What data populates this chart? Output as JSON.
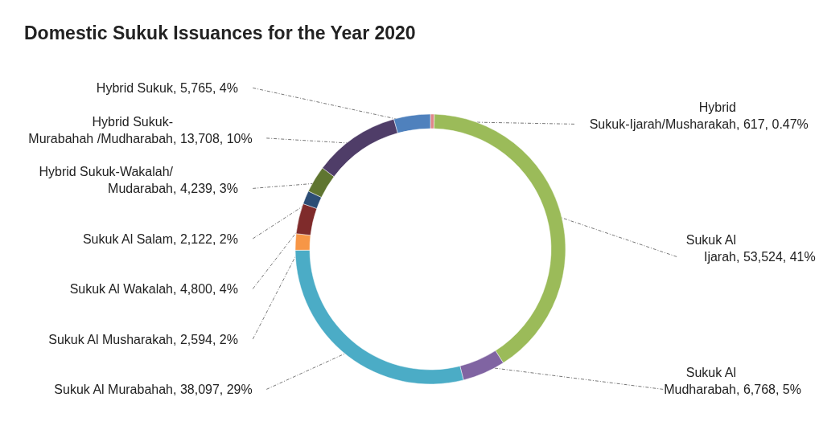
{
  "chart_data": {
    "type": "donut",
    "title": "Domestic Sukuk Issuances for the Year 2020",
    "categories": [
      "Hybrid Sukuk-Ijarah/Musharakah",
      "Sukuk Al Ijarah",
      "Sukuk Al Mudharabah",
      "Sukuk Al Murabahah",
      "Sukuk Al Musharakah",
      "Sukuk Al Wakalah",
      "Sukuk Al Salam",
      "Hybrid Sukuk-Wakalah/ Mudarabah",
      "Hybrid Sukuk- Murabahah /Mudharabah",
      "Hybrid Sukuk"
    ],
    "values": [
      617,
      53524,
      6768,
      38097,
      2594,
      4800,
      2122,
      4239,
      13708,
      5765
    ],
    "value_labels": [
      ", 617, 0.47%",
      ", 53,524, 41%",
      ", 6,768, 5%",
      ", 38,097, 29%",
      ", 2,594, 2%",
      ", 4,800, 4%",
      ", 2,122, 2%",
      ", 4,239, 3%",
      ", 13,708, 10%",
      ", 5,765, 4%"
    ],
    "colors": [
      "#e0868a",
      "#9bbb59",
      "#8064a2",
      "#4bacc6",
      "#f79646",
      "#7f2b2b",
      "#2c4d75",
      "#5f7530",
      "#4f3d68",
      "#4f81bd"
    ]
  }
}
